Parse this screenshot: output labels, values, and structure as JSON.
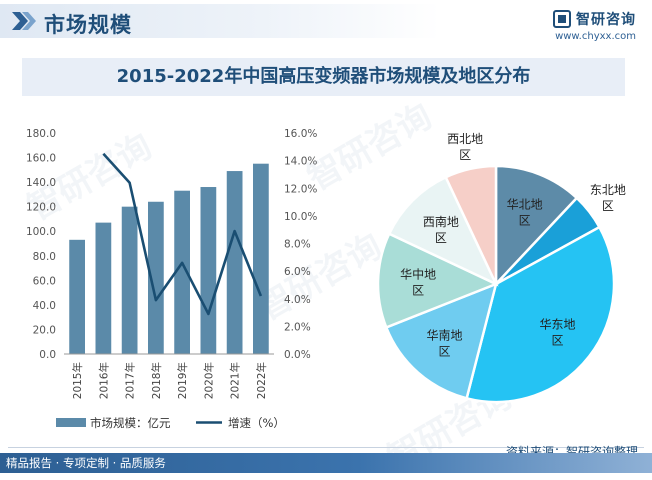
{
  "header": {
    "title": "市场规模",
    "brand": "智研咨询",
    "url": "www.chyxx.com"
  },
  "chart_title": "2015-2022年中国高压变频器市场规模及地区分布",
  "footer": {
    "source": "资料来源：智研咨询整理",
    "tagline": "精品报告 · 专项定制 · 品质服务"
  },
  "watermark": "智研咨询",
  "colors": {
    "bar": "#5b8aa9",
    "line": "#1a4e72",
    "brand": "#1f4e79"
  },
  "chart_data": [
    {
      "type": "bar",
      "categories": [
        "2015年",
        "2016年",
        "2017年",
        "2018年",
        "2019年",
        "2020年",
        "2021年",
        "2022年"
      ],
      "series": [
        {
          "name": "市场规模：亿元",
          "type": "bar",
          "axis": "left",
          "values": [
            93,
            107,
            120,
            124,
            133,
            136,
            149,
            155
          ]
        },
        {
          "name": "增速（%）",
          "type": "line",
          "axis": "right",
          "values": [
            null,
            14.5,
            12.4,
            3.9,
            6.6,
            2.9,
            8.9,
            4.2
          ]
        }
      ],
      "y_left": {
        "min": 0,
        "max": 180,
        "step": 20,
        "ticks": [
          "0.0",
          "20.0",
          "40.0",
          "60.0",
          "80.0",
          "100.0",
          "120.0",
          "140.0",
          "160.0",
          "180.0"
        ]
      },
      "y_right": {
        "min": 0,
        "max": 16,
        "step": 2,
        "ticks": [
          "0.0%",
          "2.0%",
          "4.0%",
          "6.0%",
          "8.0%",
          "10.0%",
          "12.0%",
          "14.0%",
          "16.0%"
        ]
      },
      "legend": [
        "市场规模：亿元",
        "增速（%）"
      ],
      "legend_position": "bottom"
    },
    {
      "type": "pie",
      "slices": [
        {
          "label": "华北地区",
          "value": 12,
          "color": "#5d8ba8",
          "label_inside": true
        },
        {
          "label": "东北地区",
          "value": 5,
          "color": "#1aa0d8",
          "label_inside": false
        },
        {
          "label": "华东地区",
          "value": 37,
          "color": "#25c3f3",
          "label_inside": true
        },
        {
          "label": "华南地区",
          "value": 15,
          "color": "#6fccf0",
          "label_inside": true
        },
        {
          "label": "华中地区",
          "value": 13,
          "color": "#a9ddd7",
          "label_inside": true
        },
        {
          "label": "西南地区",
          "value": 11,
          "color": "#e9f4f4",
          "label_inside": true
        },
        {
          "label": "西北地区",
          "value": 7,
          "color": "#f6cfc8",
          "label_inside": false
        }
      ]
    }
  ]
}
